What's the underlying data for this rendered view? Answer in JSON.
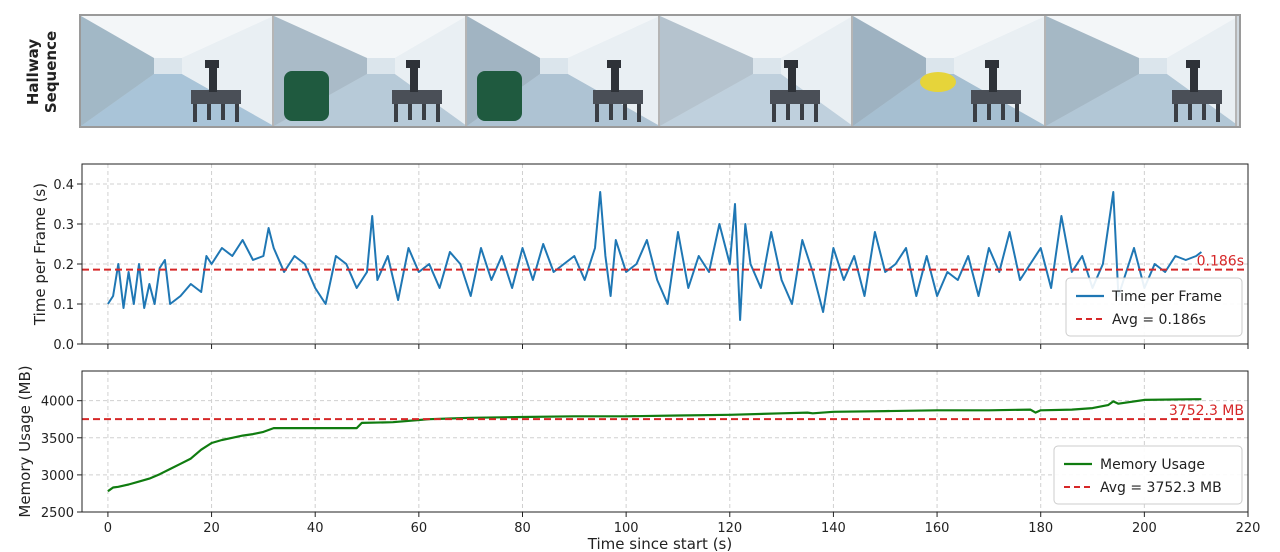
{
  "strip": {
    "label_line1": "Hallway",
    "label_line2": "Sequence",
    "frames": [
      {
        "name": "frame-1"
      },
      {
        "name": "frame-2"
      },
      {
        "name": "frame-3"
      },
      {
        "name": "frame-4"
      },
      {
        "name": "frame-5"
      },
      {
        "name": "frame-6"
      }
    ]
  },
  "colors": {
    "time_series": "#1f77b4",
    "memory_series": "#107c10",
    "average": "#d62728",
    "grid": "#d0d0d0"
  },
  "chart_data": [
    {
      "type": "line",
      "ylabel": "Time per Frame (s)",
      "xlim": [
        -5,
        220
      ],
      "ylim": [
        0.0,
        0.45
      ],
      "yticks": [
        0.0,
        0.1,
        0.2,
        0.3,
        0.4
      ],
      "ytick_labels": [
        "0.0",
        "0.1",
        "0.2",
        "0.3",
        "0.4"
      ],
      "grid": true,
      "legend_position": "lower-right",
      "series": [
        {
          "name": "Time per Frame",
          "x": [
            0,
            1,
            2,
            3,
            4,
            5,
            6,
            7,
            8,
            9,
            10,
            11,
            12,
            14,
            16,
            18,
            19,
            20,
            22,
            24,
            26,
            28,
            30,
            31,
            32,
            34,
            36,
            38,
            40,
            42,
            44,
            46,
            48,
            50,
            51,
            52,
            54,
            56,
            58,
            60,
            62,
            64,
            66,
            68,
            70,
            72,
            74,
            76,
            78,
            80,
            82,
            84,
            86,
            88,
            90,
            92,
            94,
            95,
            96,
            97,
            98,
            100,
            102,
            104,
            106,
            108,
            110,
            112,
            114,
            116,
            118,
            120,
            121,
            122,
            123,
            124,
            126,
            128,
            130,
            132,
            134,
            136,
            138,
            140,
            142,
            144,
            146,
            148,
            150,
            152,
            154,
            156,
            158,
            160,
            162,
            164,
            166,
            168,
            170,
            172,
            174,
            176,
            178,
            180,
            182,
            184,
            186,
            188,
            190,
            192,
            194,
            195,
            196,
            198,
            200,
            202,
            204,
            206,
            208,
            210,
            211
          ],
          "y": [
            0.1,
            0.12,
            0.2,
            0.09,
            0.18,
            0.1,
            0.2,
            0.09,
            0.15,
            0.1,
            0.19,
            0.21,
            0.1,
            0.12,
            0.15,
            0.13,
            0.22,
            0.2,
            0.24,
            0.22,
            0.26,
            0.21,
            0.22,
            0.29,
            0.24,
            0.18,
            0.22,
            0.2,
            0.14,
            0.1,
            0.22,
            0.2,
            0.14,
            0.18,
            0.32,
            0.16,
            0.22,
            0.11,
            0.24,
            0.18,
            0.2,
            0.14,
            0.23,
            0.2,
            0.12,
            0.24,
            0.16,
            0.22,
            0.14,
            0.24,
            0.16,
            0.25,
            0.18,
            0.2,
            0.22,
            0.16,
            0.24,
            0.38,
            0.22,
            0.12,
            0.26,
            0.18,
            0.2,
            0.26,
            0.16,
            0.1,
            0.28,
            0.14,
            0.22,
            0.18,
            0.3,
            0.2,
            0.35,
            0.06,
            0.3,
            0.2,
            0.14,
            0.28,
            0.16,
            0.1,
            0.26,
            0.18,
            0.08,
            0.24,
            0.16,
            0.22,
            0.12,
            0.28,
            0.18,
            0.2,
            0.24,
            0.12,
            0.22,
            0.12,
            0.18,
            0.16,
            0.22,
            0.12,
            0.24,
            0.18,
            0.28,
            0.16,
            0.2,
            0.24,
            0.14,
            0.32,
            0.18,
            0.22,
            0.14,
            0.2,
            0.38,
            0.12,
            0.16,
            0.24,
            0.14,
            0.2,
            0.18,
            0.22,
            0.21,
            0.22,
            0.23
          ]
        },
        {
          "name": "Avg = 0.186s",
          "kind": "hline",
          "value": 0.186,
          "label": "0.186s"
        }
      ]
    },
    {
      "type": "line",
      "ylabel": "Memory Usage (MB)",
      "xlabel": "Time since start (s)",
      "xlim": [
        -5,
        220
      ],
      "ylim": [
        2500,
        4400
      ],
      "xticks": [
        0,
        20,
        40,
        60,
        80,
        100,
        120,
        140,
        160,
        180,
        200,
        220
      ],
      "xtick_labels": [
        "0",
        "20",
        "40",
        "60",
        "80",
        "100",
        "120",
        "140",
        "160",
        "180",
        "200",
        "220"
      ],
      "yticks": [
        2500,
        3000,
        3500,
        4000
      ],
      "ytick_labels": [
        "2500",
        "3000",
        "3500",
        "4000"
      ],
      "grid": true,
      "legend_position": "lower-right",
      "series": [
        {
          "name": "Memory Usage",
          "x": [
            0,
            1,
            2,
            4,
            6,
            8,
            10,
            12,
            14,
            16,
            18,
            20,
            22,
            24,
            26,
            28,
            30,
            32,
            40,
            48,
            49,
            55,
            60,
            62,
            66,
            70,
            80,
            90,
            100,
            110,
            120,
            130,
            135,
            136,
            140,
            150,
            160,
            170,
            178,
            179,
            180,
            186,
            190,
            193,
            194,
            195,
            196,
            200,
            210,
            211
          ],
          "y": [
            2780,
            2830,
            2840,
            2870,
            2910,
            2950,
            3010,
            3080,
            3150,
            3220,
            3340,
            3430,
            3470,
            3500,
            3530,
            3550,
            3580,
            3630,
            3630,
            3630,
            3700,
            3710,
            3740,
            3750,
            3760,
            3770,
            3780,
            3790,
            3790,
            3800,
            3810,
            3830,
            3840,
            3830,
            3850,
            3860,
            3870,
            3870,
            3880,
            3840,
            3870,
            3880,
            3900,
            3940,
            3990,
            3960,
            3970,
            4010,
            4020,
            4020
          ]
        },
        {
          "name": "Avg = 3752.3 MB",
          "kind": "hline",
          "value": 3752.3,
          "label": "3752.3 MB"
        }
      ]
    }
  ]
}
